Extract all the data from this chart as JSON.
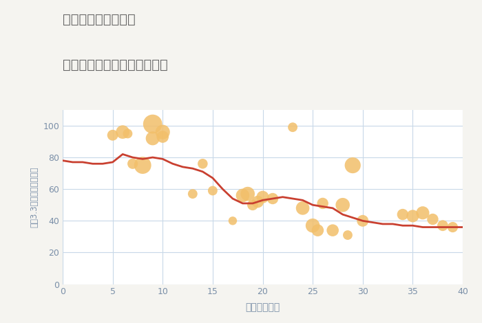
{
  "title_line1": "埼玉県坂戸市竹之内",
  "title_line2": "築年数別中古マンション価格",
  "xlabel": "築年数（年）",
  "ylabel": "平（3.3㎡）単価（万円）",
  "bg_color": "#f5f4f0",
  "plot_bg_color": "#ffffff",
  "title_color": "#666666",
  "axis_label_color": "#7a8fa8",
  "tick_color": "#7a8fa8",
  "annotation_color": "#6688aa",
  "grid_color": "#c8d8e8",
  "bubble_color": "#f2bf6a",
  "bubble_alpha": 0.85,
  "line_color": "#c94030",
  "line_width": 2.0,
  "xlim": [
    0,
    40
  ],
  "ylim": [
    0,
    110
  ],
  "xticks": [
    0,
    5,
    10,
    15,
    20,
    25,
    30,
    35,
    40
  ],
  "yticks": [
    0,
    20,
    40,
    60,
    80,
    100
  ],
  "scatter_x": [
    5,
    6,
    6.5,
    7,
    8,
    9,
    9,
    10,
    10,
    13,
    14,
    15,
    17,
    18,
    18.5,
    19,
    19.5,
    20,
    21,
    23,
    24,
    25,
    25.5,
    26,
    27,
    28,
    28.5,
    29,
    30,
    34,
    35,
    36,
    37,
    38,
    39
  ],
  "scatter_y": [
    94,
    96,
    95,
    76,
    75,
    101,
    92,
    96,
    93,
    57,
    76,
    59,
    40,
    56,
    57,
    50,
    52,
    55,
    54,
    99,
    48,
    37,
    34,
    51,
    34,
    50,
    31,
    75,
    40,
    44,
    43,
    45,
    41,
    37,
    36
  ],
  "scatter_size": [
    130,
    200,
    100,
    120,
    320,
    400,
    210,
    230,
    160,
    100,
    110,
    100,
    80,
    200,
    220,
    130,
    160,
    170,
    140,
    100,
    200,
    220,
    160,
    140,
    160,
    220,
    100,
    280,
    150,
    140,
    170,
    190,
    140,
    130,
    120
  ],
  "line_x": [
    0,
    1,
    2,
    3,
    4,
    5,
    6,
    7,
    8,
    9,
    10,
    11,
    12,
    13,
    14,
    15,
    16,
    17,
    18,
    19,
    20,
    21,
    22,
    23,
    24,
    25,
    26,
    27,
    28,
    29,
    30,
    31,
    32,
    33,
    34,
    35,
    36,
    37,
    38,
    39,
    40
  ],
  "line_y": [
    78,
    77,
    77,
    76,
    76,
    77,
    82,
    80,
    79,
    80,
    79,
    76,
    74,
    73,
    71,
    67,
    60,
    54,
    51,
    51,
    53,
    54,
    55,
    54,
    53,
    50,
    49,
    48,
    44,
    42,
    40,
    39,
    38,
    38,
    37,
    37,
    36,
    36,
    36,
    36,
    36
  ]
}
